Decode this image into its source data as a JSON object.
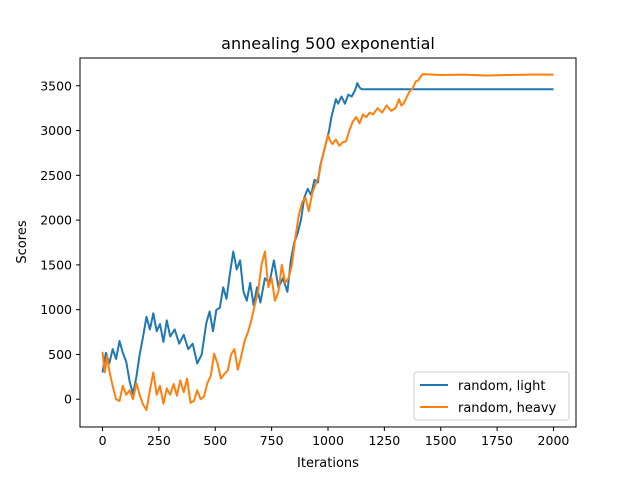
{
  "chart_data": {
    "type": "line",
    "title": "annealing 500 exponential",
    "xlabel": "Iterations",
    "ylabel": "Scores",
    "xlim": [
      -100,
      2100
    ],
    "ylim": [
      -310,
      3810
    ],
    "xticks": [
      0,
      250,
      500,
      750,
      1000,
      1250,
      1500,
      1750,
      2000
    ],
    "yticks": [
      0,
      500,
      1000,
      1500,
      2000,
      2500,
      3000,
      3500
    ],
    "grid": false,
    "legend_position": "lower-right",
    "series": [
      {
        "name": "random, light",
        "color": "#1f77b4",
        "points": [
          [
            0,
            300
          ],
          [
            15,
            520
          ],
          [
            30,
            400
          ],
          [
            45,
            560
          ],
          [
            60,
            450
          ],
          [
            75,
            650
          ],
          [
            90,
            520
          ],
          [
            105,
            420
          ],
          [
            120,
            200
          ],
          [
            135,
            60
          ],
          [
            150,
            250
          ],
          [
            165,
            500
          ],
          [
            180,
            700
          ],
          [
            195,
            920
          ],
          [
            210,
            780
          ],
          [
            225,
            960
          ],
          [
            240,
            760
          ],
          [
            255,
            840
          ],
          [
            270,
            640
          ],
          [
            285,
            880
          ],
          [
            300,
            700
          ],
          [
            320,
            780
          ],
          [
            340,
            620
          ],
          [
            360,
            720
          ],
          [
            380,
            560
          ],
          [
            400,
            620
          ],
          [
            420,
            400
          ],
          [
            440,
            500
          ],
          [
            460,
            850
          ],
          [
            475,
            980
          ],
          [
            490,
            760
          ],
          [
            505,
            1000
          ],
          [
            520,
            1020
          ],
          [
            535,
            1250
          ],
          [
            550,
            1120
          ],
          [
            565,
            1400
          ],
          [
            580,
            1650
          ],
          [
            595,
            1450
          ],
          [
            610,
            1550
          ],
          [
            625,
            1200
          ],
          [
            640,
            1100
          ],
          [
            655,
            1300
          ],
          [
            670,
            1050
          ],
          [
            685,
            1250
          ],
          [
            700,
            1080
          ],
          [
            720,
            1350
          ],
          [
            740,
            1300
          ],
          [
            760,
            1550
          ],
          [
            780,
            1250
          ],
          [
            800,
            1350
          ],
          [
            820,
            1200
          ],
          [
            835,
            1550
          ],
          [
            850,
            1750
          ],
          [
            865,
            1850
          ],
          [
            880,
            2000
          ],
          [
            895,
            2250
          ],
          [
            910,
            2350
          ],
          [
            925,
            2280
          ],
          [
            940,
            2450
          ],
          [
            955,
            2420
          ],
          [
            965,
            2600
          ],
          [
            975,
            2700
          ],
          [
            985,
            2800
          ],
          [
            995,
            2900
          ],
          [
            1005,
            3000
          ],
          [
            1015,
            3150
          ],
          [
            1025,
            3250
          ],
          [
            1035,
            3350
          ],
          [
            1045,
            3300
          ],
          [
            1060,
            3380
          ],
          [
            1075,
            3300
          ],
          [
            1090,
            3400
          ],
          [
            1105,
            3380
          ],
          [
            1120,
            3450
          ],
          [
            1130,
            3530
          ],
          [
            1140,
            3480
          ],
          [
            1150,
            3460
          ],
          [
            1300,
            3460
          ],
          [
            1500,
            3460
          ],
          [
            1750,
            3460
          ],
          [
            2000,
            3460
          ]
        ]
      },
      {
        "name": "random, heavy",
        "color": "#ff7f0e",
        "points": [
          [
            0,
            530
          ],
          [
            10,
            300
          ],
          [
            20,
            480
          ],
          [
            30,
            320
          ],
          [
            40,
            200
          ],
          [
            50,
            100
          ],
          [
            60,
            0
          ],
          [
            75,
            -20
          ],
          [
            90,
            150
          ],
          [
            105,
            50
          ],
          [
            120,
            100
          ],
          [
            135,
            0
          ],
          [
            150,
            180
          ],
          [
            165,
            50
          ],
          [
            180,
            -60
          ],
          [
            195,
            -120
          ],
          [
            210,
            100
          ],
          [
            225,
            300
          ],
          [
            240,
            50
          ],
          [
            255,
            150
          ],
          [
            270,
            -50
          ],
          [
            285,
            120
          ],
          [
            300,
            50
          ],
          [
            315,
            170
          ],
          [
            330,
            40
          ],
          [
            345,
            210
          ],
          [
            360,
            80
          ],
          [
            375,
            230
          ],
          [
            390,
            -40
          ],
          [
            405,
            -20
          ],
          [
            420,
            100
          ],
          [
            435,
            0
          ],
          [
            450,
            30
          ],
          [
            465,
            180
          ],
          [
            480,
            260
          ],
          [
            495,
            510
          ],
          [
            510,
            400
          ],
          [
            525,
            230
          ],
          [
            540,
            280
          ],
          [
            555,
            320
          ],
          [
            570,
            500
          ],
          [
            585,
            560
          ],
          [
            600,
            330
          ],
          [
            615,
            480
          ],
          [
            630,
            650
          ],
          [
            645,
            750
          ],
          [
            660,
            880
          ],
          [
            675,
            1050
          ],
          [
            690,
            1200
          ],
          [
            705,
            1500
          ],
          [
            720,
            1650
          ],
          [
            735,
            1250
          ],
          [
            750,
            1350
          ],
          [
            765,
            1100
          ],
          [
            780,
            1200
          ],
          [
            795,
            1500
          ],
          [
            810,
            1300
          ],
          [
            825,
            1350
          ],
          [
            840,
            1500
          ],
          [
            855,
            1800
          ],
          [
            870,
            2050
          ],
          [
            885,
            2200
          ],
          [
            900,
            2250
          ],
          [
            915,
            2100
          ],
          [
            930,
            2300
          ],
          [
            945,
            2400
          ],
          [
            960,
            2500
          ],
          [
            970,
            2650
          ],
          [
            980,
            2750
          ],
          [
            990,
            2850
          ],
          [
            1000,
            2950
          ],
          [
            1010,
            2880
          ],
          [
            1020,
            2850
          ],
          [
            1035,
            2900
          ],
          [
            1050,
            2830
          ],
          [
            1065,
            2870
          ],
          [
            1080,
            2880
          ],
          [
            1095,
            3000
          ],
          [
            1110,
            3100
          ],
          [
            1125,
            3150
          ],
          [
            1140,
            3080
          ],
          [
            1155,
            3180
          ],
          [
            1170,
            3150
          ],
          [
            1185,
            3200
          ],
          [
            1200,
            3180
          ],
          [
            1220,
            3250
          ],
          [
            1240,
            3200
          ],
          [
            1260,
            3280
          ],
          [
            1280,
            3220
          ],
          [
            1300,
            3250
          ],
          [
            1315,
            3350
          ],
          [
            1325,
            3280
          ],
          [
            1335,
            3300
          ],
          [
            1345,
            3350
          ],
          [
            1360,
            3430
          ],
          [
            1375,
            3470
          ],
          [
            1390,
            3550
          ],
          [
            1400,
            3560
          ],
          [
            1410,
            3600
          ],
          [
            1420,
            3630
          ],
          [
            1500,
            3620
          ],
          [
            1600,
            3625
          ],
          [
            1700,
            3615
          ],
          [
            1800,
            3620
          ],
          [
            1900,
            3625
          ],
          [
            2000,
            3625
          ]
        ]
      }
    ]
  }
}
